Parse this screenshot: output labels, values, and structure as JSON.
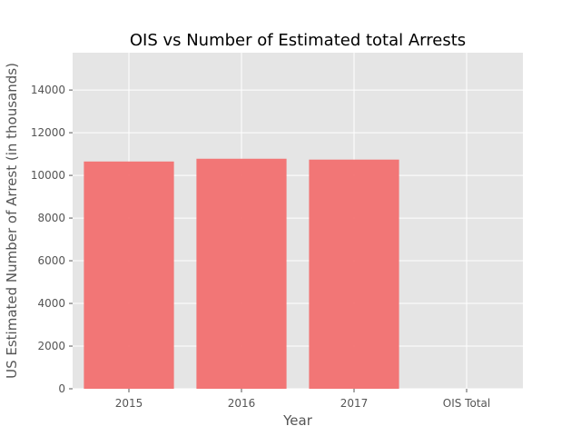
{
  "chart_data": {
    "type": "bar",
    "title": "OIS vs Number of Estimated total Arrests",
    "xlabel": "Year",
    "ylabel": "US Estimated Number of Arrest (in thousands)",
    "categories": [
      "2015",
      "2016",
      "2017",
      "OIS Total"
    ],
    "values": [
      10650,
      10780,
      10740,
      0
    ],
    "ylim": [
      0,
      15750
    ],
    "yticks": [
      0,
      2000,
      4000,
      6000,
      8000,
      10000,
      12000,
      14000
    ],
    "grid": true,
    "legend": "none",
    "colors": {
      "bar": "#f27070",
      "plot_background": "#e5e5e5",
      "grid": "#ffffff"
    }
  }
}
